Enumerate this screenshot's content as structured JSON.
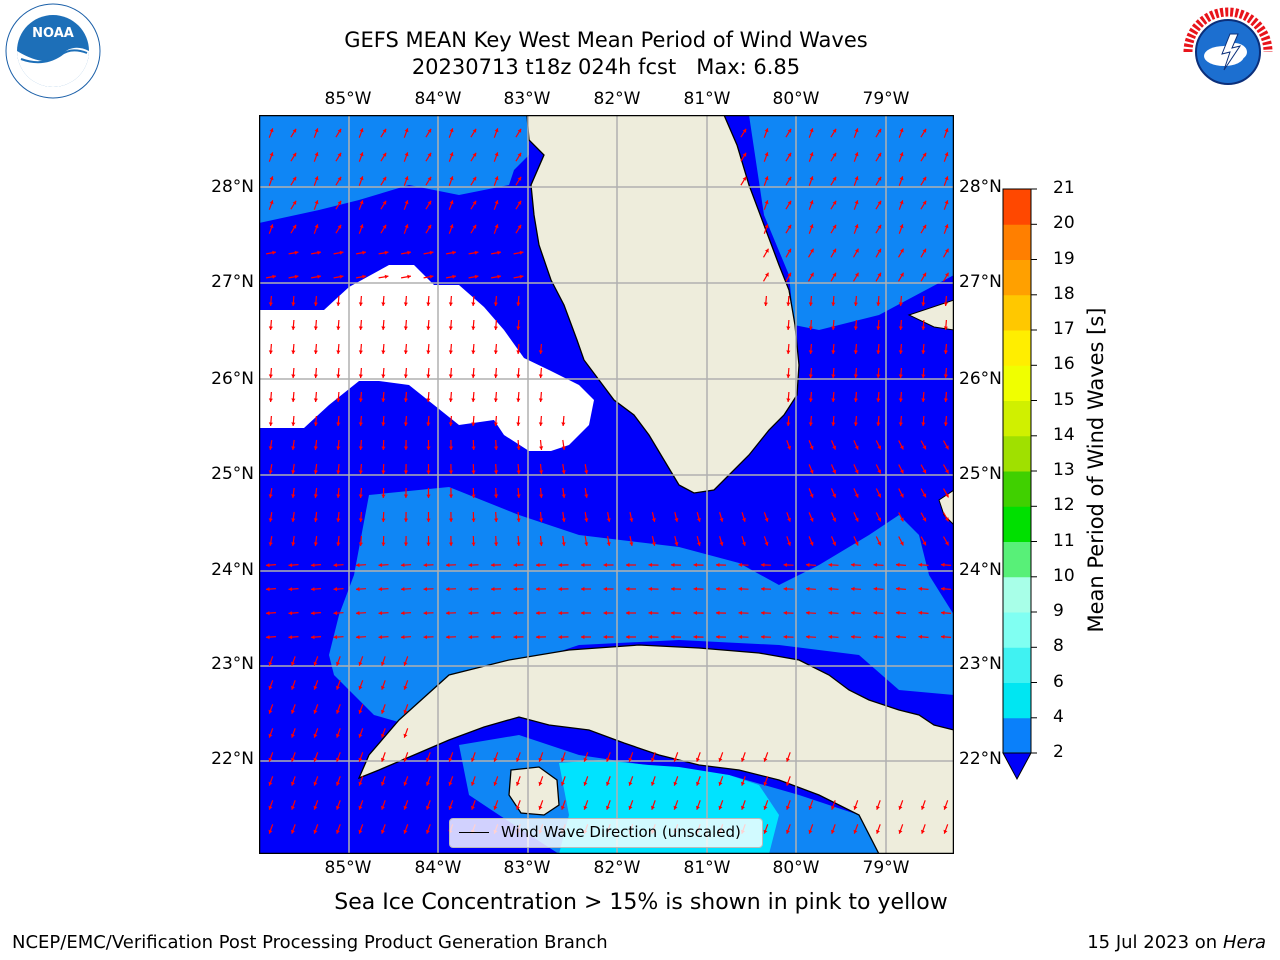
{
  "header": {
    "title_line1": "GEFS MEAN Key West Mean Period of Wind Waves",
    "title_line2": "20230713 t18z 024h fcst   Max: 6.85"
  },
  "logos": {
    "left": {
      "name": "noaa-logo",
      "text": "NOAA",
      "ring_text": "NATIONAL OCEANIC AND ATMOSPHERIC ADMINISTRATION · U.S. DEPARTMENT OF COMMERCE"
    },
    "right": {
      "name": "nws-logo",
      "ring_text": "NATIONAL WEATHER SERVICE"
    }
  },
  "map": {
    "lon_labels": [
      "85°W",
      "84°W",
      "83°W",
      "82°W",
      "81°W",
      "80°W",
      "79°W"
    ],
    "lat_labels": [
      "28°N",
      "27°N",
      "26°N",
      "25°N",
      "24°N",
      "23°N",
      "22°N"
    ],
    "legend_label": "Wind Wave Direction (unscaled)",
    "colors": {
      "land": "#eeeddc",
      "period_2_4": "#0000fa",
      "period_4_6": "#0f86f5",
      "period_6_8": "#00e3ff",
      "arrows": "#ff0000"
    }
  },
  "colorbar": {
    "label": "Mean Period of Wind Waves [s]",
    "ticks": [
      "2",
      "4",
      "6",
      "8",
      "9",
      "10",
      "11",
      "12",
      "13",
      "14",
      "15",
      "16",
      "17",
      "18",
      "19",
      "20",
      "21"
    ],
    "colors": [
      "#0a80fa",
      "#00e6f2",
      "#40f2f2",
      "#80fff2",
      "#a8ffe8",
      "#58f078",
      "#00e000",
      "#40d000",
      "#a0e000",
      "#d0f000",
      "#f0ff00",
      "#ffee00",
      "#ffc800",
      "#ffa000",
      "#ff7f00",
      "#ff4800",
      "#ff1000",
      "#ff0000"
    ],
    "under_color": "#0000fa"
  },
  "footer": {
    "caption": "Sea Ice Concentration > 15% is shown in pink to yellow",
    "left": "NCEP/EMC/Verification Post Processing Product Generation Branch",
    "right_date": "15 Jul 2023 on ",
    "right_host": "Hera"
  }
}
